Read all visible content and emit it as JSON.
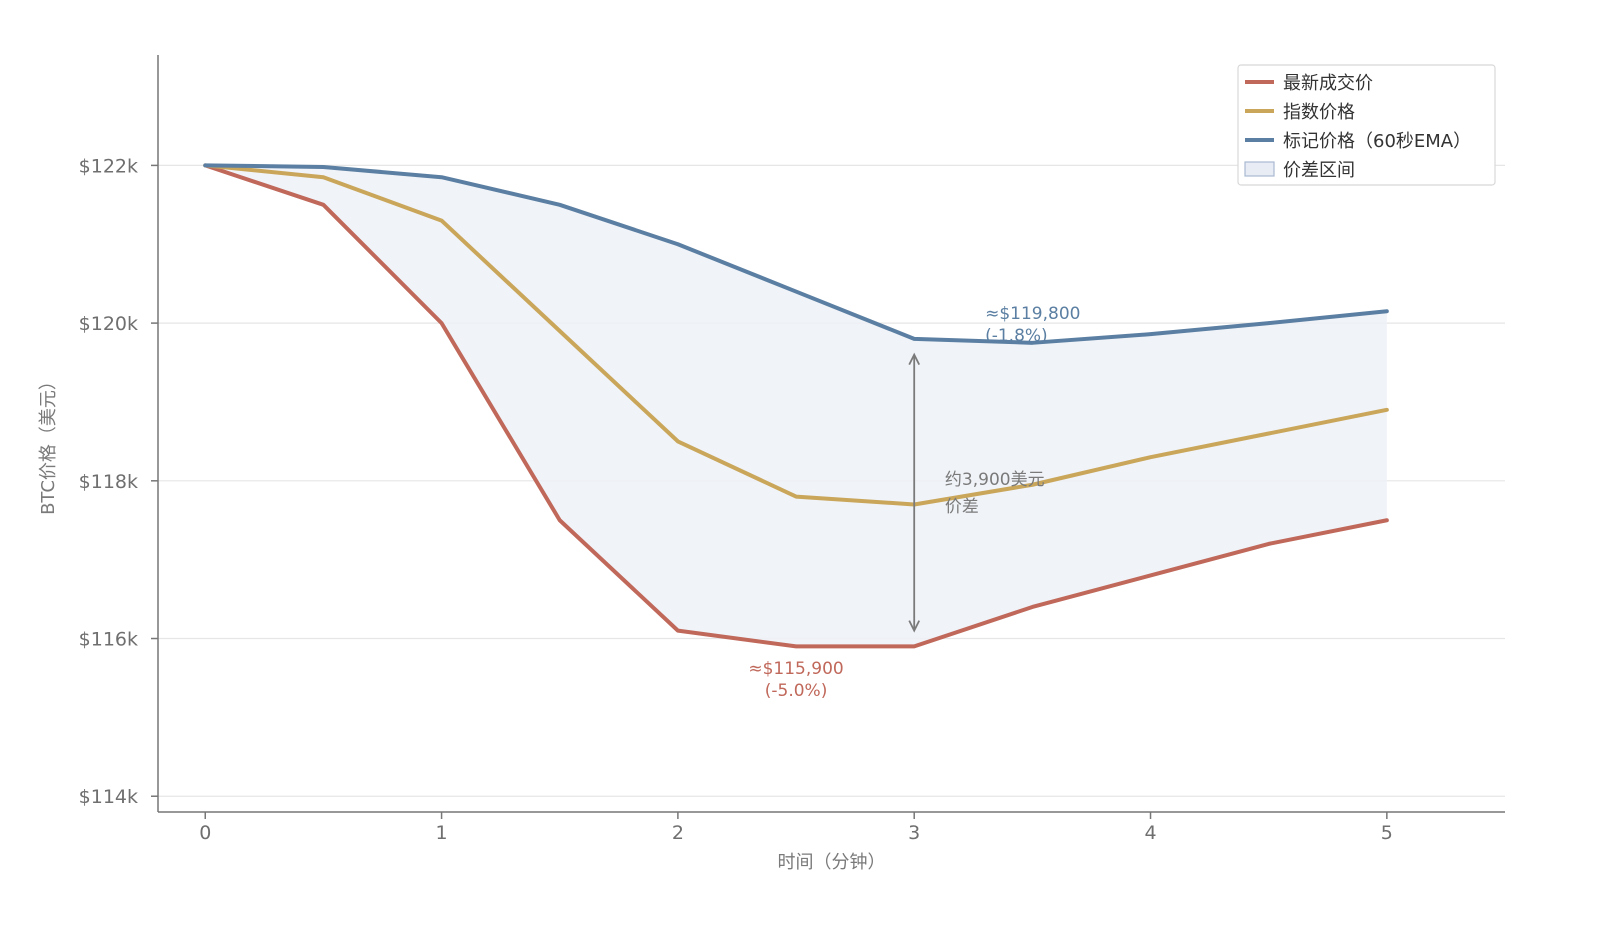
{
  "chart_data": {
    "type": "line",
    "title": "",
    "xlabel": "时间（分钟）",
    "ylabel": "BTC价格（美元）",
    "xlim": [
      -0.2,
      5.5
    ],
    "ylim": [
      113800,
      123400
    ],
    "xticks": [
      0,
      1,
      2,
      3,
      4,
      5
    ],
    "xtick_labels": [
      "0",
      "1",
      "2",
      "3",
      "4",
      "5"
    ],
    "yticks": [
      114000,
      116000,
      118000,
      120000,
      122000
    ],
    "ytick_labels": [
      "$114k",
      "$116k",
      "$118k",
      "$120k",
      "$122k"
    ],
    "grid": "horizontal",
    "legend_position": "top-right",
    "x": [
      0,
      0.5,
      1,
      1.5,
      2,
      2.5,
      3,
      3.5,
      4,
      4.5,
      5
    ],
    "series": [
      {
        "name": "最新成交价",
        "color": "#c0685a",
        "values": [
          122000,
          121500,
          120000,
          117500,
          116100,
          115900,
          115900,
          116400,
          116800,
          117200,
          117500
        ]
      },
      {
        "name": "指数价格",
        "color": "#c9a65a",
        "values": [
          122000,
          121850,
          121300,
          119900,
          118500,
          117800,
          117700,
          117950,
          118300,
          118600,
          118900
        ]
      },
      {
        "name": "标记价格（60秒EMA）",
        "color": "#5b7fa2",
        "values": [
          122000,
          121980,
          121850,
          121500,
          121000,
          120400,
          119800,
          119750,
          119860,
          120000,
          120150
        ]
      }
    ],
    "band": {
      "name": "价差区间",
      "fill": "#edf1f7",
      "legend_fill": "#e8edf5",
      "legend_stroke": "#a9b9d0"
    },
    "annotations": [
      {
        "line1": "≈$119,800",
        "line2": "(-1.8%)",
        "color": "#5b7fa2",
        "x": 3.3,
        "y": 120050
      },
      {
        "line1": "≈$115,900",
        "line2": "(-5.0%)",
        "color": "#c0685a",
        "x": 2.5,
        "y": 115550
      },
      {
        "line1": "约3,900美元",
        "line2": "价差",
        "color": "#7a7a7a",
        "x": 3.13,
        "y": 117950
      }
    ],
    "spread_arrow": {
      "x": 3.0,
      "y_top": 119600,
      "y_bottom": 116100,
      "color": "#7a7a7a"
    }
  }
}
